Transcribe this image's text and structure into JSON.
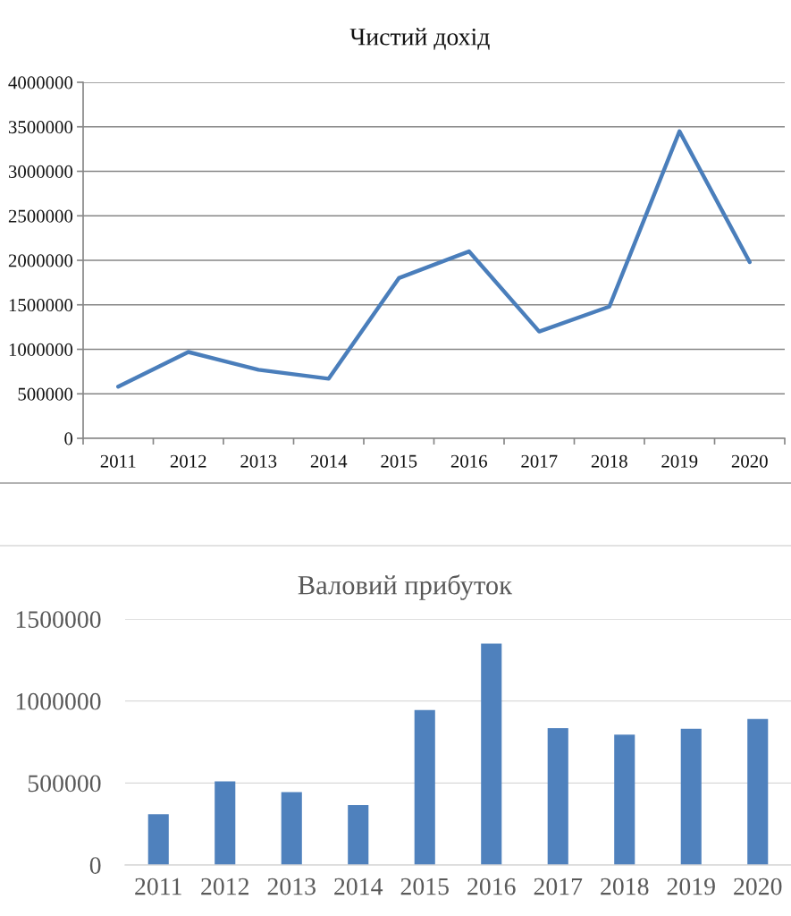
{
  "chart_data": [
    {
      "type": "line",
      "title": "Чистий дохід",
      "categories": [
        "2011",
        "2012",
        "2013",
        "2014",
        "2015",
        "2016",
        "2017",
        "2018",
        "2019",
        "2020"
      ],
      "values": [
        580000,
        970000,
        770000,
        670000,
        1800000,
        2100000,
        1200000,
        1480000,
        3450000,
        1980000
      ],
      "color": "#4a7ebb",
      "ylim": [
        0,
        4000000
      ],
      "yticks": [
        0,
        500000,
        1000000,
        1500000,
        2000000,
        2500000,
        3000000,
        3500000,
        4000000
      ],
      "grid": "y",
      "line_style": "solid"
    },
    {
      "type": "bar",
      "title": "Валовий прибуток",
      "categories": [
        "2011",
        "2012",
        "2013",
        "2014",
        "2015",
        "2016",
        "2017",
        "2018",
        "2019",
        "2020"
      ],
      "values": [
        310000,
        510000,
        445000,
        365000,
        945000,
        1350000,
        835000,
        795000,
        830000,
        890000
      ],
      "color": "#4f81bd",
      "ylim": [
        0,
        1500000
      ],
      "yticks": [
        0,
        500000,
        1000000,
        1500000
      ],
      "grid": "y"
    }
  ]
}
